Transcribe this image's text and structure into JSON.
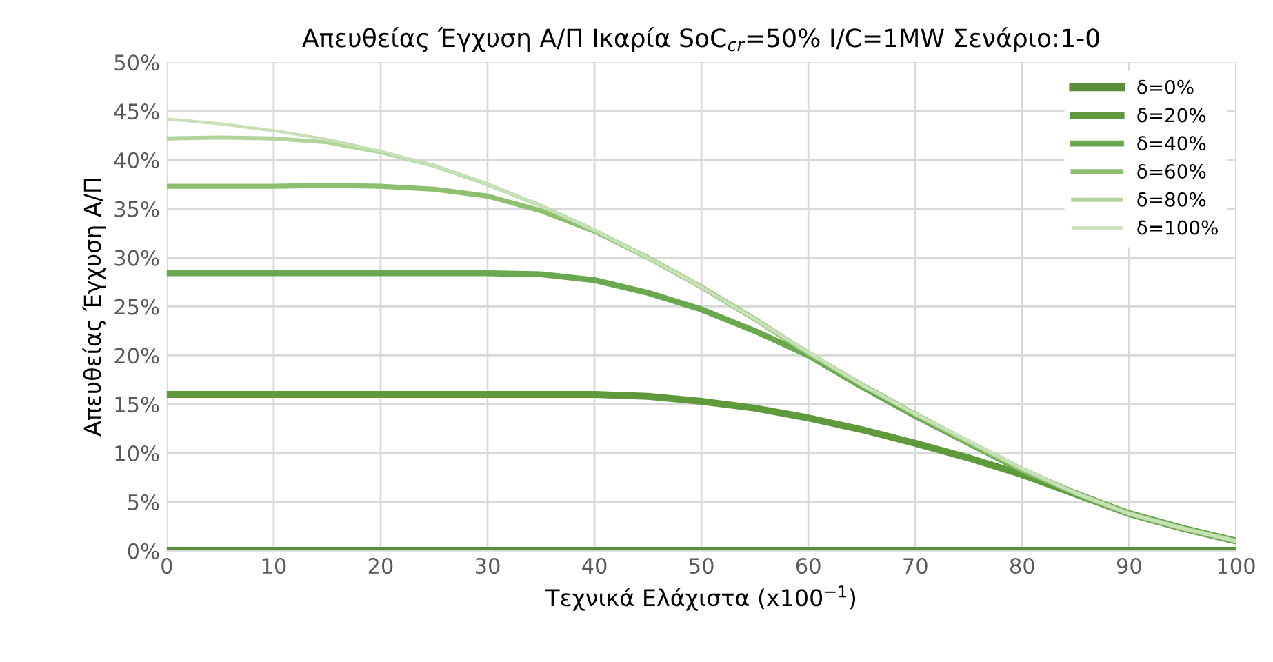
{
  "chart_data": {
    "type": "line",
    "title": "Απευθείας Έγχυση Α/Π Ικαρία SoC$_{cr}$=50% I/C=1MW Σενάριο:1-0",
    "xlabel": "Τεχνικά Ελάχιστα (x100$^{−1}$)",
    "ylabel": "Απευθείας Έγχυση Α/Π",
    "x": [
      0,
      5,
      10,
      15,
      20,
      25,
      30,
      35,
      40,
      45,
      50,
      55,
      60,
      65,
      70,
      75,
      80,
      85,
      90,
      95,
      100
    ],
    "series": [
      {
        "name": "δ=0%",
        "color": "#5b8c3a",
        "values": [
          0,
          0,
          0,
          0,
          0,
          0,
          0,
          0,
          0,
          0,
          0,
          0,
          0,
          0,
          0,
          0,
          0,
          0,
          0,
          0,
          0
        ]
      },
      {
        "name": "δ=20%",
        "color": "#5e9a3c",
        "values": [
          16,
          16,
          16,
          16,
          16,
          16,
          16,
          16,
          16,
          15.8,
          15.3,
          14.6,
          13.6,
          12.4,
          11,
          9.5,
          7.8,
          5.8,
          3.8,
          2.3,
          1
        ]
      },
      {
        "name": "δ=40%",
        "color": "#6aa84f",
        "values": [
          28.4,
          28.4,
          28.4,
          28.4,
          28.4,
          28.4,
          28.4,
          28.3,
          27.7,
          26.4,
          24.7,
          22.5,
          20,
          16.8,
          13.8,
          11,
          8.2,
          5.9,
          3.8,
          2.3,
          1
        ]
      },
      {
        "name": "δ=60%",
        "color": "#8cc06e",
        "values": [
          37.3,
          37.3,
          37.3,
          37.4,
          37.3,
          37,
          36.3,
          34.8,
          32.7,
          30,
          27,
          23.7,
          20.2,
          17,
          14,
          11.1,
          8.3,
          5.9,
          3.8,
          2.3,
          1
        ]
      },
      {
        "name": "δ=80%",
        "color": "#b0d49a",
        "values": [
          42.2,
          42.3,
          42.2,
          41.8,
          40.8,
          39.4,
          37.5,
          35.3,
          32.8,
          30,
          27,
          23.7,
          20.3,
          17,
          14,
          11.2,
          8.4,
          5.9,
          3.8,
          2.3,
          1
        ]
      },
      {
        "name": "δ=100%",
        "color": "#c8e0b8",
        "values": [
          44.2,
          43.7,
          43,
          42.1,
          40.9,
          39.4,
          37.5,
          35.3,
          32.8,
          30,
          27,
          23.7,
          20.3,
          17,
          14,
          11.2,
          8.4,
          5.9,
          3.8,
          2.3,
          1
        ]
      }
    ],
    "xlim": [
      0,
      100
    ],
    "xticks": [
      0,
      10,
      20,
      30,
      40,
      50,
      60,
      70,
      80,
      90,
      100
    ],
    "ylim": [
      0,
      50
    ],
    "yticks": [
      {
        "value": 0,
        "label": "0%"
      },
      {
        "value": 5,
        "label": "5%"
      },
      {
        "value": 10,
        "label": "10%"
      },
      {
        "value": 15,
        "label": "15%"
      },
      {
        "value": 20,
        "label": "20%"
      },
      {
        "value": 25,
        "label": "25%"
      },
      {
        "value": 30,
        "label": "30%"
      },
      {
        "value": 35,
        "label": "35%"
      },
      {
        "value": 40,
        "label": "40%"
      },
      {
        "value": 45,
        "label": "45%"
      },
      {
        "value": 50,
        "label": "50%"
      }
    ],
    "grid": true,
    "legend": "top right",
    "marker": "none",
    "line_style": "solid"
  }
}
